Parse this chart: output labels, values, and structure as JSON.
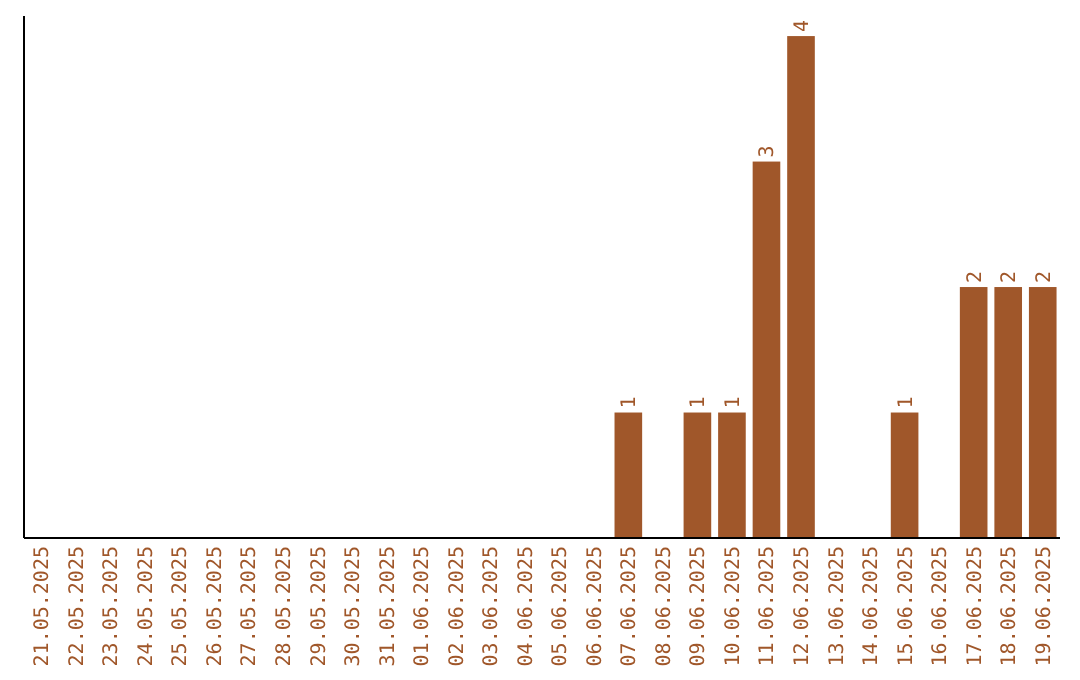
{
  "chart_data": {
    "type": "bar",
    "categories": [
      "21.05.2025",
      "22.05.2025",
      "23.05.2025",
      "24.05.2025",
      "25.05.2025",
      "26.05.2025",
      "27.05.2025",
      "28.05.2025",
      "29.05.2025",
      "30.05.2025",
      "31.05.2025",
      "01.06.2025",
      "02.06.2025",
      "03.06.2025",
      "04.06.2025",
      "05.06.2025",
      "06.06.2025",
      "07.06.2025",
      "08.06.2025",
      "09.06.2025",
      "10.06.2025",
      "11.06.2025",
      "12.06.2025",
      "13.06.2025",
      "14.06.2025",
      "15.06.2025",
      "16.06.2025",
      "17.06.2025",
      "18.06.2025",
      "19.06.2025"
    ],
    "values": [
      null,
      null,
      null,
      null,
      null,
      null,
      null,
      null,
      null,
      null,
      null,
      null,
      null,
      null,
      null,
      null,
      null,
      1,
      null,
      1,
      1,
      3,
      4,
      null,
      null,
      1,
      null,
      2,
      2,
      2
    ],
    "data_labels": true,
    "color": "#a0572a",
    "tick_labels": "x"
  }
}
